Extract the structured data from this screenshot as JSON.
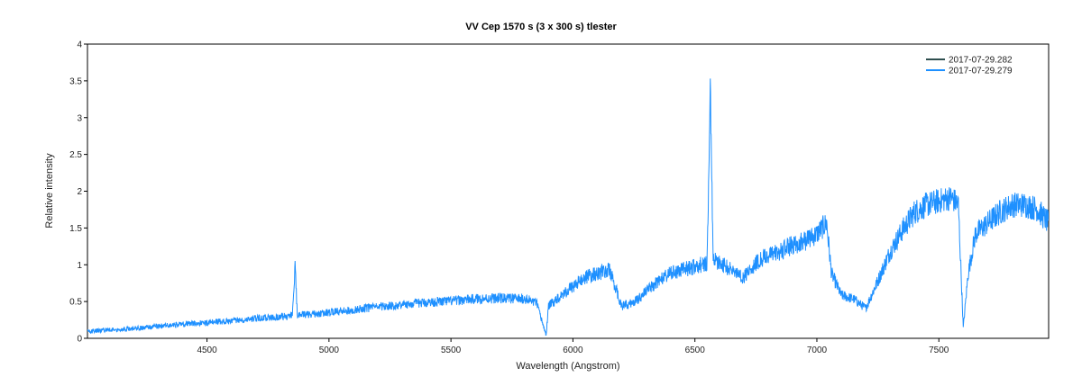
{
  "chart_data": {
    "type": "line",
    "title": "VV Cep  1570 s (3 x 300 s)  tlester",
    "xlabel": "Wavelength (Angstrom)",
    "ylabel": "Relative intensity",
    "xlim": [
      4010,
      7950
    ],
    "ylim": [
      0,
      4
    ],
    "x_ticks": [
      4500,
      5000,
      5500,
      6000,
      6500,
      7000,
      7500
    ],
    "y_ticks": [
      0,
      0.5,
      1,
      1.5,
      2,
      2.5,
      3,
      3.5,
      4
    ],
    "grid": false,
    "legend_position": "top-right",
    "series": [
      {
        "name": "2017-07-29.282",
        "color": "#2f4f4f",
        "x": [],
        "values": []
      },
      {
        "name": "2017-07-29.279",
        "color": "#1e90ff",
        "x": [
          4010,
          4100,
          4200,
          4300,
          4400,
          4500,
          4600,
          4700,
          4800,
          4850,
          4861,
          4870,
          4900,
          5000,
          5100,
          5200,
          5300,
          5400,
          5500,
          5600,
          5700,
          5800,
          5850,
          5890,
          5900,
          5950,
          6000,
          6050,
          6100,
          6150,
          6200,
          6250,
          6300,
          6350,
          6400,
          6450,
          6500,
          6550,
          6563,
          6575,
          6600,
          6650,
          6700,
          6750,
          6800,
          6850,
          6900,
          6950,
          7000,
          7040,
          7060,
          7100,
          7150,
          7200,
          7250,
          7300,
          7350,
          7400,
          7450,
          7500,
          7550,
          7580,
          7600,
          7620,
          7650,
          7700,
          7750,
          7800,
          7850,
          7900,
          7950
        ],
        "values": [
          0.1,
          0.12,
          0.14,
          0.17,
          0.2,
          0.22,
          0.25,
          0.28,
          0.3,
          0.32,
          1.03,
          0.33,
          0.33,
          0.36,
          0.4,
          0.44,
          0.47,
          0.5,
          0.52,
          0.55,
          0.56,
          0.55,
          0.5,
          0.05,
          0.45,
          0.6,
          0.72,
          0.85,
          0.9,
          0.95,
          0.45,
          0.5,
          0.65,
          0.8,
          0.9,
          0.95,
          1.0,
          1.05,
          3.45,
          1.1,
          1.05,
          0.95,
          0.85,
          1.05,
          1.15,
          1.2,
          1.3,
          1.35,
          1.45,
          1.6,
          0.9,
          0.6,
          0.55,
          0.42,
          0.8,
          1.2,
          1.5,
          1.75,
          1.85,
          1.9,
          1.95,
          1.85,
          0.15,
          0.9,
          1.45,
          1.6,
          1.75,
          1.85,
          1.85,
          1.8,
          1.6
        ]
      }
    ]
  }
}
